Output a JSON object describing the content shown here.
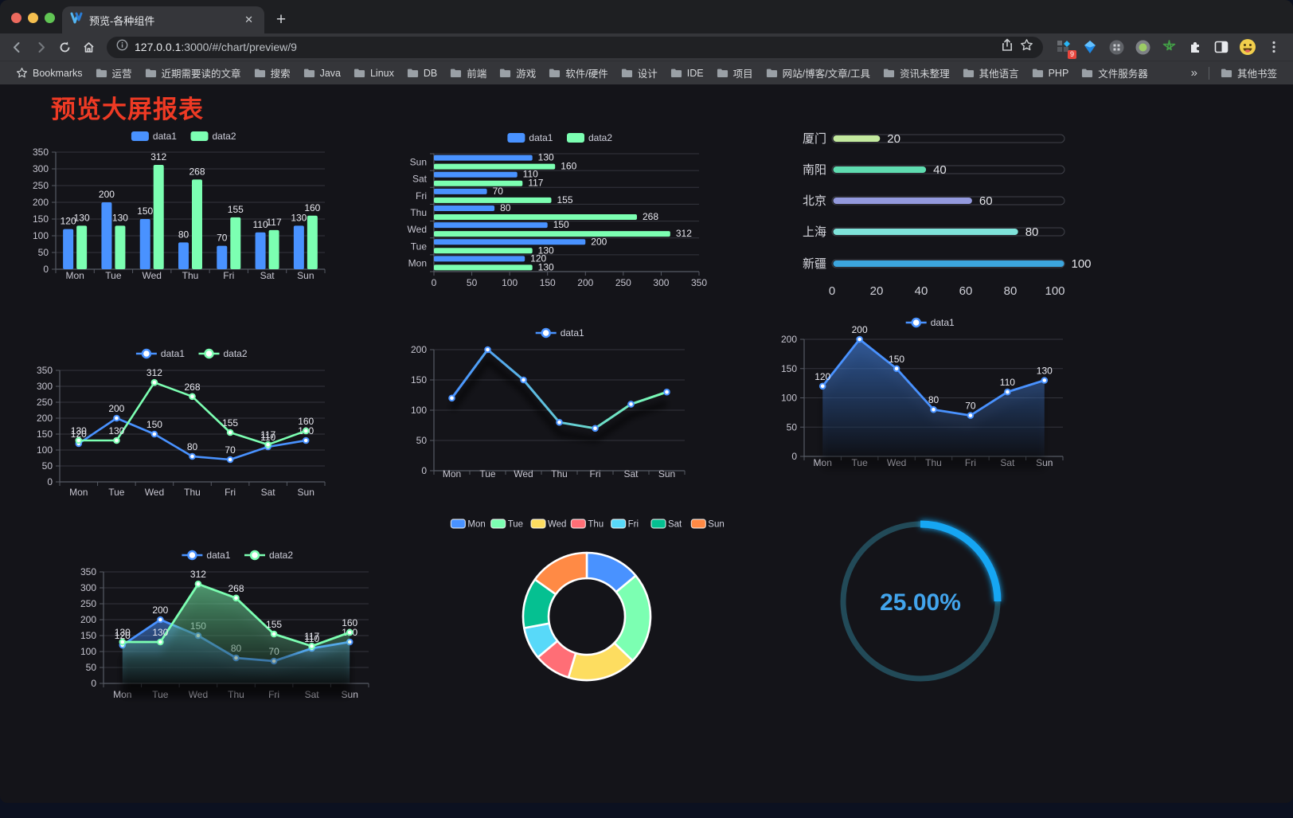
{
  "browser": {
    "traffic_lights": {
      "close": "#ec6a5e",
      "minimize": "#f5bf4f",
      "fullscreen": "#61c554"
    },
    "tab": {
      "title": "预览-各种组件",
      "close_glyph": "✕",
      "new_tab_glyph": "+"
    },
    "url": {
      "host": "127.0.0.1",
      "rest": ":3000/#/chart/preview/9"
    },
    "extension_badge": "9",
    "bookmarks_bar": {
      "bookmarks_label": "Bookmarks",
      "folders": [
        "运营",
        "近期需要读的文章",
        "搜索",
        "Java",
        "Linux",
        "DB",
        "前端",
        "游戏",
        "软件/硬件",
        "设计",
        "IDE",
        "项目",
        "网站/博客/文章/工具",
        "资讯未整理",
        "其他语言",
        "PHP",
        "文件服务器"
      ],
      "overflow_chevron": "»",
      "other_bookmarks": "其他书签"
    }
  },
  "page": {
    "title": "预览大屏报表",
    "title_color": "#ee3a24",
    "background": "#141419"
  },
  "chart_data": [
    {
      "name": "grouped-bar",
      "type": "bar",
      "categories": [
        "Mon",
        "Tue",
        "Wed",
        "Thu",
        "Fri",
        "Sat",
        "Sun"
      ],
      "series": [
        {
          "name": "data1",
          "color": "#4992ff",
          "values": [
            120,
            200,
            150,
            80,
            70,
            110,
            130
          ]
        },
        {
          "name": "data2",
          "color": "#7cffb2",
          "values": [
            130,
            130,
            312,
            268,
            155,
            117,
            160
          ]
        }
      ],
      "ylim": [
        0,
        350
      ],
      "ytick_step": 50,
      "legend_position": "top",
      "grid": true,
      "show_labels": true
    },
    {
      "name": "grouped-horizontal-bar",
      "type": "hbar",
      "categories": [
        "Mon",
        "Tue",
        "Wed",
        "Thu",
        "Fri",
        "Sat",
        "Sun"
      ],
      "category_order_top_to_bottom": [
        "Sun",
        "Sat",
        "Fri",
        "Thu",
        "Wed",
        "Tue",
        "Mon"
      ],
      "series": [
        {
          "name": "data1",
          "color": "#4992ff",
          "values": [
            120,
            200,
            150,
            80,
            70,
            110,
            130
          ]
        },
        {
          "name": "data2",
          "color": "#7cffb2",
          "values": [
            130,
            130,
            312,
            268,
            155,
            117,
            160
          ]
        }
      ],
      "xlim": [
        0,
        350
      ],
      "xtick_step": 50,
      "legend_position": "top",
      "show_labels": true
    },
    {
      "name": "city-progress-bars",
      "type": "progress",
      "items": [
        {
          "label": "厦门",
          "value": 20,
          "color": "#c3e99e"
        },
        {
          "label": "南阳",
          "value": 40,
          "color": "#5fdcb0"
        },
        {
          "label": "北京",
          "value": 60,
          "color": "#9399dd"
        },
        {
          "label": "上海",
          "value": 80,
          "color": "#7fe3da"
        },
        {
          "label": "新疆",
          "value": 100,
          "color": "#3ca5dd"
        }
      ],
      "xticks": [
        0,
        20,
        40,
        60,
        80,
        100
      ],
      "xlim": [
        0,
        100
      ]
    },
    {
      "name": "two-series-line",
      "type": "line",
      "categories": [
        "Mon",
        "Tue",
        "Wed",
        "Thu",
        "Fri",
        "Sat",
        "Sun"
      ],
      "series": [
        {
          "name": "data1",
          "color": "#4992ff",
          "values": [
            120,
            200,
            150,
            80,
            70,
            110,
            130
          ]
        },
        {
          "name": "data2",
          "color": "#7cffb2",
          "values": [
            130,
            130,
            312,
            268,
            155,
            117,
            160
          ]
        }
      ],
      "ylim": [
        0,
        350
      ],
      "ytick_step": 50,
      "legend_position": "top",
      "show_labels": true
    },
    {
      "name": "gradient-line",
      "type": "linegrad",
      "categories": [
        "Mon",
        "Tue",
        "Wed",
        "Thu",
        "Fri",
        "Sat",
        "Sun"
      ],
      "series": [
        {
          "name": "data1",
          "values": [
            120,
            200,
            150,
            80,
            70,
            110,
            130
          ]
        }
      ],
      "gradient": [
        "#4992ff",
        "#7cffb2"
      ],
      "ylim": [
        0,
        200
      ],
      "ytick_step": 50,
      "legend_position": "top",
      "show_labels": false,
      "shadow": true
    },
    {
      "name": "single-area",
      "type": "area",
      "categories": [
        "Mon",
        "Tue",
        "Wed",
        "Thu",
        "Fri",
        "Sat",
        "Sun"
      ],
      "series": [
        {
          "name": "data1",
          "color": "#4992ff",
          "values": [
            120,
            200,
            150,
            80,
            70,
            110,
            130
          ]
        }
      ],
      "ylim": [
        0,
        200
      ],
      "ytick_step": 50,
      "legend_position": "top",
      "show_labels": true
    },
    {
      "name": "two-series-area",
      "type": "area2",
      "categories": [
        "Mon",
        "Tue",
        "Wed",
        "Thu",
        "Fri",
        "Sat",
        "Sun"
      ],
      "series": [
        {
          "name": "data1",
          "color": "#4992ff",
          "values": [
            120,
            200,
            150,
            80,
            70,
            110,
            130
          ]
        },
        {
          "name": "data2",
          "color": "#7cffb2",
          "values": [
            130,
            130,
            312,
            268,
            155,
            117,
            160
          ]
        }
      ],
      "ylim": [
        0,
        350
      ],
      "ytick_step": 50,
      "legend_position": "top",
      "show_labels": true
    },
    {
      "name": "weekday-donut",
      "type": "pie",
      "categories": [
        "Mon",
        "Tue",
        "Wed",
        "Thu",
        "Fri",
        "Sat",
        "Sun"
      ],
      "values": [
        120,
        200,
        150,
        80,
        70,
        110,
        130
      ],
      "colors": [
        "#4992ff",
        "#7cffb2",
        "#fddd60",
        "#ff6e76",
        "#58d9f9",
        "#05c091",
        "#ff8a45"
      ],
      "inner_radius_ratio": 0.6,
      "border_color": "#ffffff",
      "legend_position": "top"
    },
    {
      "name": "percent-gauge",
      "type": "gauge",
      "value_percent": 25,
      "label": "25.00%",
      "progress_color": "#18a6f3",
      "track_color": "#224a58",
      "text_color": "#42a4ec"
    }
  ]
}
